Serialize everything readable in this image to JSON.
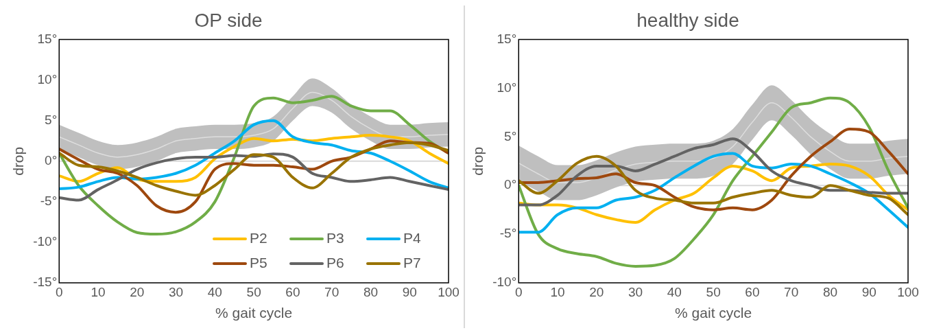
{
  "chart_data": [
    {
      "type": "line",
      "title": "OP side",
      "xlabel": "% gait cycle",
      "ylabel": "drop",
      "x": [
        0,
        5,
        10,
        15,
        20,
        25,
        30,
        35,
        40,
        45,
        50,
        55,
        60,
        65,
        70,
        75,
        80,
        85,
        90,
        95,
        100
      ],
      "xlim": [
        0,
        100
      ],
      "xticks": [
        0,
        10,
        20,
        30,
        40,
        50,
        60,
        70,
        80,
        90,
        100
      ],
      "ylim": [
        -15,
        15
      ],
      "yticks": [
        {
          "value": -15,
          "label": "-15°"
        },
        {
          "value": -10,
          "label": "-10°"
        },
        {
          "value": -5,
          "label": "-5°"
        },
        {
          "value": 0,
          "label": "0°"
        },
        {
          "value": 5,
          "label": "5°"
        },
        {
          "value": 10,
          "label": "10°"
        },
        {
          "value": 15,
          "label": "15°"
        }
      ],
      "grid": false,
      "legend": "bottom right",
      "ref_lines": [
        {
          "axis": "y",
          "value": 0,
          "color": "#d9d9d9"
        }
      ],
      "series": [
        {
          "color": "#dedede",
          "values": [
            3,
            2,
            1,
            0.5,
            0.8,
            1.5,
            2.5,
            2.8,
            3,
            3,
            3.2,
            4,
            6.5,
            8.5,
            7.5,
            5.5,
            4,
            3,
            3,
            3.2,
            3.3
          ],
          "lower": [
            1.5,
            0.5,
            -0.5,
            -1,
            -0.7,
            0,
            1,
            1.3,
            1.5,
            1.5,
            1.7,
            2.5,
            5,
            6.8,
            6,
            4,
            2.5,
            1.5,
            1.5,
            1.7,
            1.8
          ],
          "upper": [
            4.5,
            3.5,
            2.5,
            2,
            2.3,
            3,
            4,
            4.3,
            4.5,
            4.5,
            4.7,
            5.5,
            8,
            10.2,
            9,
            7,
            5.5,
            4.5,
            4.5,
            4.7,
            4.8
          ]
        },
        {
          "name": "P2",
          "color": "#ffc000",
          "values": [
            -1.8,
            -2.5,
            -1.5,
            -0.8,
            -2.2,
            -2.5,
            -2.5,
            -2,
            0.3,
            1.8,
            2.8,
            2.5,
            2.7,
            2.5,
            2.8,
            3,
            3.2,
            3,
            2.5,
            1,
            -0.3
          ]
        },
        {
          "name": "P3",
          "color": "#70ad47",
          "values": [
            1,
            -3,
            -5.5,
            -7.5,
            -8.8,
            -9,
            -8.7,
            -7.5,
            -5,
            0.5,
            6.8,
            7.8,
            7.2,
            7.5,
            8,
            6.8,
            6.2,
            6.2,
            4.5,
            2.5,
            1
          ]
        },
        {
          "name": "P4",
          "color": "#00b0f0",
          "values": [
            -3.4,
            -3.2,
            -2.5,
            -2,
            -2.2,
            -2,
            -1.5,
            -0.5,
            1,
            2.5,
            4.5,
            5,
            3,
            2.3,
            2,
            1.3,
            1,
            0,
            -1.2,
            -2.5,
            -3.3
          ]
        },
        {
          "name": "P5",
          "color": "#9e480e",
          "values": [
            1.5,
            0.2,
            -1,
            -1.5,
            -3,
            -5.5,
            -6.3,
            -5,
            -1,
            -0.3,
            -0.5,
            -0.5,
            -0.7,
            -1,
            0,
            0.5,
            1.5,
            2.5,
            2.3,
            2.2,
            1
          ]
        },
        {
          "name": "P6",
          "color": "#636363",
          "values": [
            -4.5,
            -4.8,
            -3.5,
            -2.3,
            -1,
            -0.2,
            0.3,
            0.5,
            0.5,
            0.7,
            0.6,
            0.9,
            0.5,
            -1.5,
            -2,
            -2.5,
            -2.3,
            -2,
            -2.5,
            -3,
            -3.5
          ]
        },
        {
          "name": "P7",
          "color": "#997300",
          "values": [
            1,
            -0.5,
            -0.7,
            -1.2,
            -2,
            -3,
            -3.7,
            -4.2,
            -3,
            -1,
            0.8,
            0.5,
            -2,
            -3.3,
            -1.5,
            0.5,
            1.5,
            2,
            2.3,
            2,
            1.3
          ]
        }
      ]
    },
    {
      "type": "line",
      "title": "healthy side",
      "xlabel": "% gait cycle",
      "ylabel": "drop",
      "x": [
        0,
        5,
        10,
        15,
        20,
        25,
        30,
        35,
        40,
        45,
        50,
        55,
        60,
        65,
        70,
        75,
        80,
        85,
        90,
        95,
        100
      ],
      "xlim": [
        0,
        100
      ],
      "xticks": [
        0,
        10,
        20,
        30,
        40,
        50,
        60,
        70,
        80,
        90,
        100
      ],
      "ylim": [
        -10,
        15
      ],
      "yticks": [
        {
          "value": -10,
          "label": "-10°"
        },
        {
          "value": -5,
          "label": "-5°"
        },
        {
          "value": 0,
          "label": "0°"
        },
        {
          "value": 5,
          "label": "5°"
        },
        {
          "value": 10,
          "label": "10°"
        },
        {
          "value": 15,
          "label": "15°"
        }
      ],
      "grid": false,
      "ref_lines": [
        {
          "axis": "y",
          "value": 0,
          "color": "#d9d9d9"
        }
      ],
      "series": [
        {
          "color": "#dedede",
          "values": [
            2.3,
            1.2,
            0.3,
            0.3,
            0.8,
            1.6,
            2.2,
            2.4,
            2.5,
            2.5,
            2.8,
            4,
            6.5,
            8.5,
            7,
            5,
            3.5,
            2.5,
            2.5,
            2.8,
            3
          ],
          "lower": [
            0.5,
            -0.6,
            -1.5,
            -1.5,
            -1,
            -0.2,
            0.4,
            0.6,
            0.7,
            0.7,
            1,
            2.2,
            4.7,
            6.7,
            5.2,
            3.2,
            1.7,
            0.7,
            0.7,
            1,
            1.2
          ],
          "upper": [
            4.1,
            3,
            2.1,
            2.1,
            2.6,
            3.4,
            4,
            4.2,
            4.3,
            4.3,
            4.6,
            5.8,
            8.3,
            10.3,
            8.8,
            6.8,
            5.3,
            4.3,
            4.3,
            4.6,
            4.8
          ]
        },
        {
          "color": "#ffc000",
          "values": [
            -1.8,
            -2,
            -2,
            -2.3,
            -3,
            -3.5,
            -3.8,
            -2.5,
            -1.5,
            -0.8,
            0.8,
            2,
            1.5,
            0.5,
            1.8,
            2,
            2.2,
            2,
            1,
            -1,
            -2.5
          ]
        },
        {
          "color": "#70ad47",
          "values": [
            0,
            -5,
            -6.5,
            -7,
            -7.3,
            -8,
            -8.3,
            -8.2,
            -7.5,
            -5.5,
            -3,
            0.5,
            3,
            5.5,
            8,
            8.5,
            9,
            8.5,
            6,
            1.5,
            -2.3
          ]
        },
        {
          "color": "#00b0f0",
          "values": [
            -4.8,
            -4.8,
            -3,
            -2.3,
            -2.3,
            -1.5,
            -1.2,
            -0.5,
            0.8,
            2,
            3,
            3.3,
            2,
            1.8,
            2.2,
            2,
            1.2,
            0.3,
            -0.8,
            -2.5,
            -4.3
          ]
        },
        {
          "color": "#9e480e",
          "values": [
            0.3,
            0.3,
            0.5,
            0.7,
            0.8,
            1.2,
            0.3,
            0,
            -1.2,
            -2.2,
            -2.5,
            -2.3,
            -2.5,
            -1.5,
            1,
            3,
            4.5,
            5.8,
            5.5,
            3.5,
            1.2
          ]
        },
        {
          "color": "#636363",
          "values": [
            -2,
            -2,
            -1,
            1,
            2,
            2,
            1.5,
            2.2,
            3,
            3.8,
            4.2,
            4.8,
            3.5,
            1.5,
            0.5,
            0,
            -0.5,
            -0.5,
            -0.7,
            -0.8,
            -0.8
          ]
        },
        {
          "color": "#997300",
          "values": [
            0.5,
            -0.8,
            0.5,
            2.3,
            3,
            2,
            -0.5,
            -1.3,
            -1.5,
            -1.8,
            -1.8,
            -1.2,
            -0.8,
            -0.5,
            -1,
            -1.2,
            0,
            -0.5,
            -1,
            -1.3,
            -3
          ]
        }
      ]
    }
  ]
}
